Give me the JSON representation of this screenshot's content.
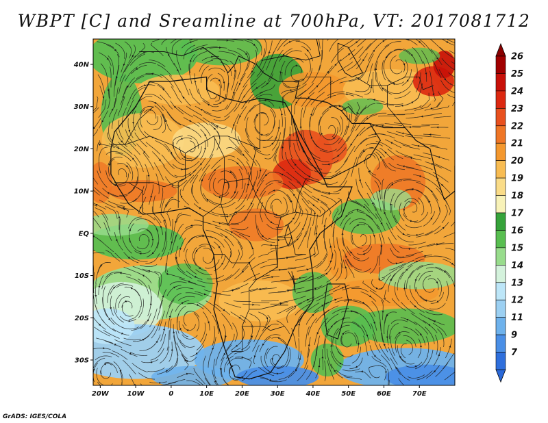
{
  "title": "WBPT [C] and Sreamline at 700hPa, VT: 2017081712",
  "footer": "GrADS: IGES/COLA",
  "map": {
    "lon_range": [
      -22,
      80
    ],
    "lat_range": [
      -36,
      46
    ],
    "lon_ticks": [
      "20W",
      "10W",
      "0",
      "10E",
      "20E",
      "30E",
      "40E",
      "50E",
      "60E",
      "70E"
    ],
    "lat_ticks": [
      "40N",
      "30N",
      "20N",
      "10N",
      "EQ",
      "10S",
      "20S",
      "30S"
    ]
  },
  "colorbar": {
    "levels": [
      "26",
      "25",
      "24",
      "23",
      "22",
      "21",
      "20",
      "19",
      "18",
      "17",
      "16",
      "15",
      "14",
      "13",
      "12",
      "11",
      "9",
      "7"
    ],
    "colors": [
      "#a10000",
      "#c81008",
      "#dc2810",
      "#e8501e",
      "#ef7626",
      "#f4982e",
      "#f8bc52",
      "#fadc88",
      "#f8f2b8",
      "#36a33a",
      "#58be50",
      "#98dc8c",
      "#d4f2dc",
      "#bde6f8",
      "#9cd0f2",
      "#6eb2ec",
      "#4a8fe6",
      "#2f6fdc"
    ]
  }
}
